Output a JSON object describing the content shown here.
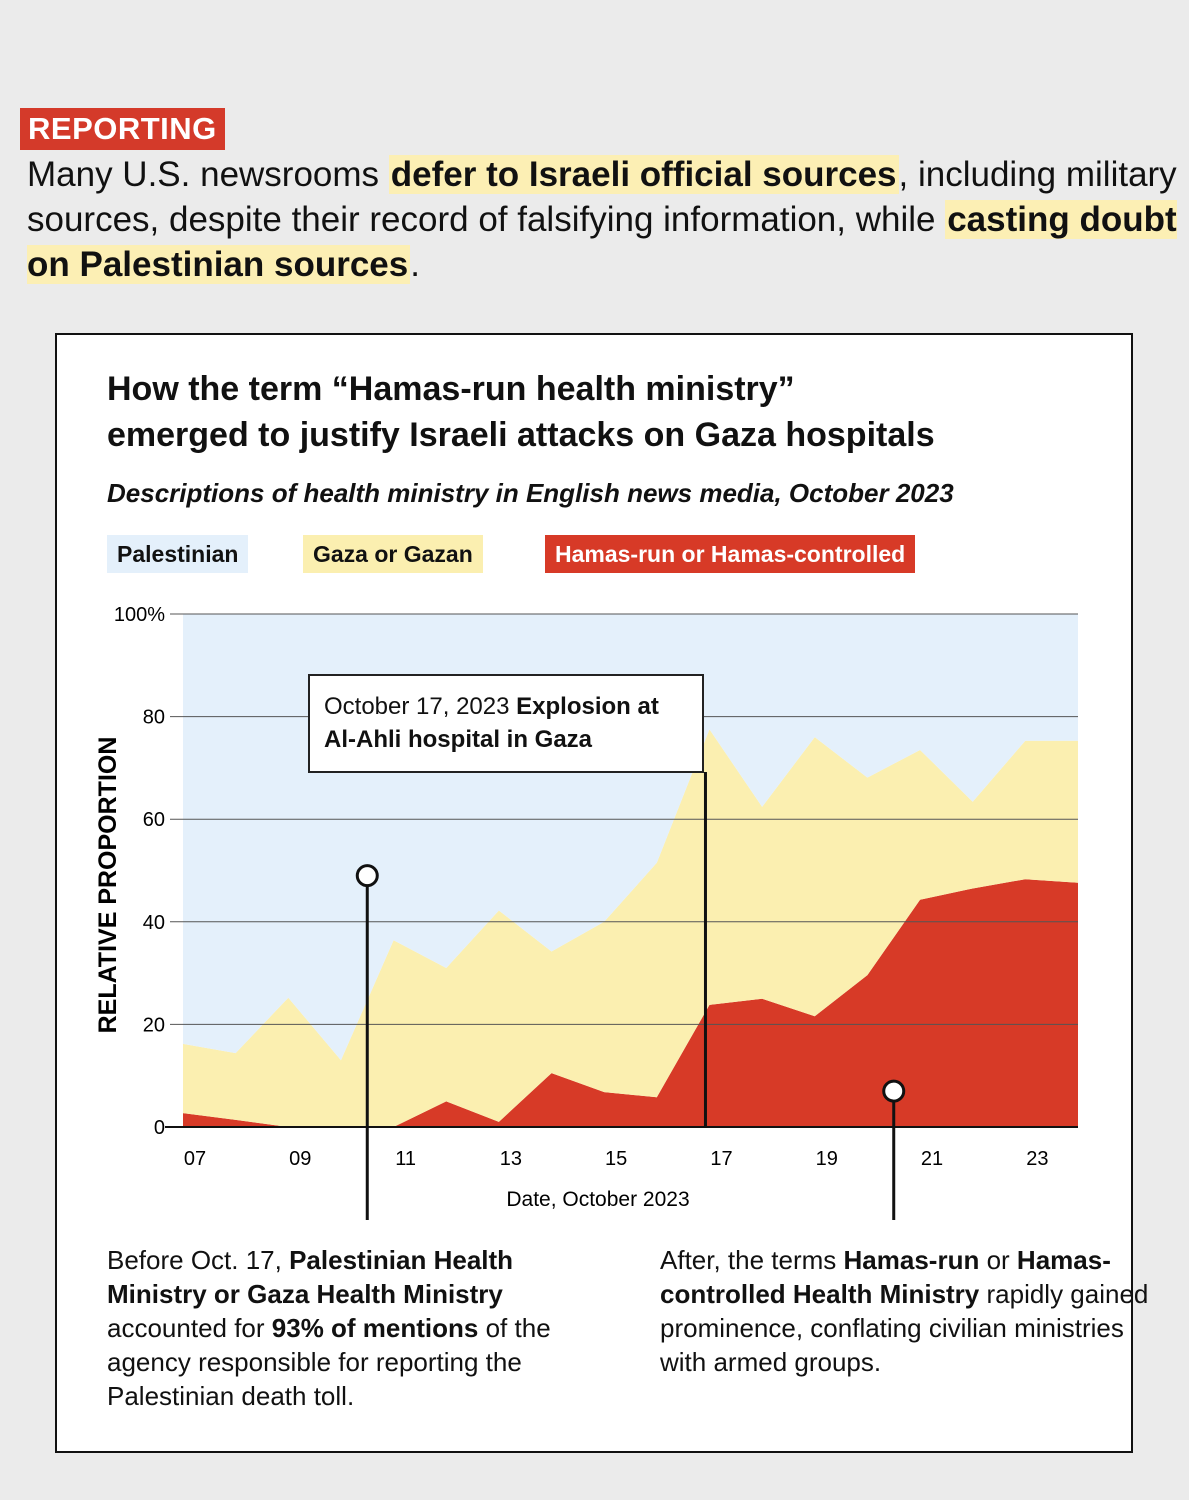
{
  "header": {
    "tag": "REPORTING",
    "lede": [
      {
        "text": "Many U.S. newsrooms ",
        "bold": false
      },
      {
        "text": "defer to Israeli official sources",
        "bold": true
      },
      {
        "text": ", including military sources, despite their record of falsifying information, while ",
        "bold": false
      },
      {
        "text": "casting doubt on Palestinian sources",
        "bold": true
      },
      {
        "text": ".",
        "bold": false
      }
    ]
  },
  "chart_data": {
    "type": "area",
    "stacked": true,
    "title_line1": "How the term “Hamas-run health ministry”",
    "title_line2": "emerged to justify Israeli attacks on Gaza hospitals",
    "subtitle": "Descriptions of health ministry in English news media, October 2023",
    "xlabel": "Date, October 2023",
    "ylabel": "RELATIVE PROPORTION",
    "ylim": [
      0,
      100
    ],
    "yticks": [
      {
        "v": 100,
        "label": "100%"
      },
      {
        "v": 80,
        "label": "80"
      },
      {
        "v": 60,
        "label": "60"
      },
      {
        "v": 40,
        "label": "40"
      },
      {
        "v": 20,
        "label": "20"
      },
      {
        "v": 0,
        "label": "0"
      }
    ],
    "xticks": [
      {
        "v": 7,
        "label": "07"
      },
      {
        "v": 9,
        "label": "09"
      },
      {
        "v": 11,
        "label": "11"
      },
      {
        "v": 13,
        "label": "13"
      },
      {
        "v": 15,
        "label": "15"
      },
      {
        "v": 17,
        "label": "17"
      },
      {
        "v": 19,
        "label": "19"
      },
      {
        "v": 21,
        "label": "21"
      },
      {
        "v": 23,
        "label": "23"
      }
    ],
    "xlim": [
      7,
      24
    ],
    "x": [
      7,
      8,
      9,
      10,
      11,
      12,
      13,
      14,
      15,
      16,
      17,
      18,
      19,
      20,
      21,
      22,
      23,
      24
    ],
    "series": [
      {
        "name": "Hamas-run or Hamas-controlled",
        "color": "#d73a27",
        "values": [
          2.7,
          1.4,
          0,
          0,
          0,
          5,
          1,
          10.5,
          6.8,
          5.8,
          23.8,
          25,
          21.6,
          29.6,
          44.3,
          46.5,
          48.3,
          47.6
        ]
      },
      {
        "name": "Gaza or Gazan",
        "color": "#fbefb0",
        "values": [
          13.5,
          13,
          25.2,
          13,
          36.4,
          26,
          41.2,
          23.7,
          33.2,
          45.7,
          53.7,
          37.4,
          54.4,
          38.5,
          29.2,
          16.9,
          27,
          27.7
        ]
      },
      {
        "name": "Palestinian",
        "color": "#e4f0fb",
        "values": [
          83.8,
          85.6,
          74.8,
          87,
          63.6,
          69,
          57.8,
          65.8,
          60,
          48.5,
          22.5,
          37.6,
          24,
          31.9,
          26.5,
          36.6,
          24.7,
          24.7
        ]
      }
    ],
    "legend_placement": "top-left",
    "annotation": {
      "date_text": "October 17, 2023 ",
      "bold_text": "Explosion at Al-Ahli hospital in Gaza",
      "x": 17
    },
    "markers": [
      {
        "x": 10.5,
        "y": 49
      },
      {
        "x": 20.5,
        "y": 7
      }
    ]
  },
  "notes": {
    "left": [
      {
        "text": "Before Oct. 17, ",
        "bold": false
      },
      {
        "text": "Palestinian Health Ministry or Gaza Health Ministry",
        "bold": true
      },
      {
        "text": " accounted for ",
        "bold": false
      },
      {
        "text": "93% of mentions",
        "bold": true
      },
      {
        "text": " of the agency responsible for reporting the Palestinian death toll.",
        "bold": false
      }
    ],
    "right": [
      {
        "text": "After, the terms ",
        "bold": false
      },
      {
        "text": "Hamas-run",
        "bold": true
      },
      {
        "text": " or ",
        "bold": false
      },
      {
        "text": "Hamas-controlled Health Ministry",
        "bold": true
      },
      {
        "text": " rapidly gained prominence, conflating civilian ministries with armed groups.",
        "bold": false
      }
    ]
  }
}
